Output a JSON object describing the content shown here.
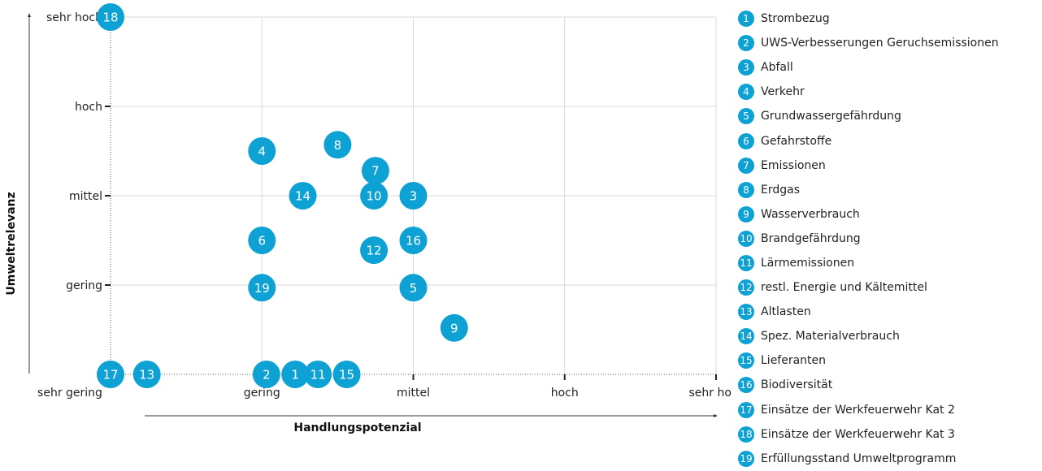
{
  "chart_data": {
    "type": "scatter",
    "xlabel": "Handlungspotenzial",
    "ylabel": "Umweltrelevanz",
    "x_ticks": [
      "sehr gering",
      "gering",
      "mittel",
      "hoch",
      "sehr hoch"
    ],
    "y_ticks": [
      "gering",
      "mittel",
      "hoch",
      "sehr hoch"
    ],
    "xlim": [
      0,
      4
    ],
    "ylim": [
      0,
      4
    ],
    "grid": true,
    "legend_position": "right",
    "bubble_color": "#0ea2d4",
    "points": [
      {
        "id": "1",
        "label": "Strombezug",
        "x": 1.22,
        "y": 0
      },
      {
        "id": "2",
        "label": "UWS-Verbesserungen Geruchsemissionen",
        "x": 1.03,
        "y": 0
      },
      {
        "id": "3",
        "label": "Abfall",
        "x": 2.0,
        "y": 2.0
      },
      {
        "id": "4",
        "label": "Verkehr",
        "x": 1.0,
        "y": 2.5
      },
      {
        "id": "5",
        "label": "Grundwassergefährdung",
        "x": 2.0,
        "y": 0.97
      },
      {
        "id": "6",
        "label": "Gefahrstoffe",
        "x": 1.0,
        "y": 1.5
      },
      {
        "id": "7",
        "label": "Emissionen",
        "x": 1.75,
        "y": 2.28
      },
      {
        "id": "8",
        "label": "Erdgas",
        "x": 1.5,
        "y": 2.57
      },
      {
        "id": "9",
        "label": "Wasserverbrauch",
        "x": 2.27,
        "y": 0.52
      },
      {
        "id": "10",
        "label": "Brandgefährdung",
        "x": 1.74,
        "y": 2.0
      },
      {
        "id": "11",
        "label": "Lärmemissionen",
        "x": 1.37,
        "y": 0
      },
      {
        "id": "12",
        "label": "restl. Energie und Kältemittel",
        "x": 1.74,
        "y": 1.39
      },
      {
        "id": "13",
        "label": "Altlasten",
        "x": 0.24,
        "y": 0
      },
      {
        "id": "14",
        "label": "Spez. Materialverbrauch",
        "x": 1.27,
        "y": 2.0
      },
      {
        "id": "15",
        "label": "Lieferanten",
        "x": 1.56,
        "y": 0
      },
      {
        "id": "16",
        "label": "Biodiversität",
        "x": 2.0,
        "y": 1.5
      },
      {
        "id": "17",
        "label": "Einsätze der Werkfeuerwehr Kat 2",
        "x": 0,
        "y": 0
      },
      {
        "id": "18",
        "label": "Einsätze der Werkfeuerwehr Kat 3",
        "x": 0,
        "y": 4.0
      },
      {
        "id": "19",
        "label": "Erfüllungsstand Umweltprogramm",
        "x": 1.0,
        "y": 0.97
      }
    ]
  }
}
